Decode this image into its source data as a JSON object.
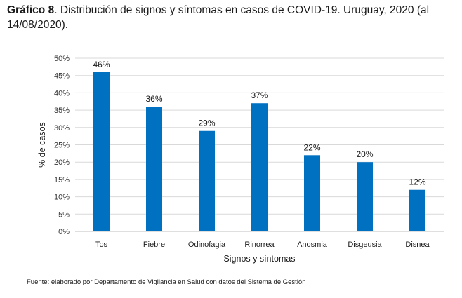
{
  "title": {
    "bold": "Gráfico 8",
    "text": ". Distribución de signos y síntomas en casos de COVID-19. Uruguay, 2020 (al 14/08/2020)."
  },
  "source": "Fuente: elaborado por Departamento de Vigilancia en Salud con datos del Sistema de Gestión",
  "chart_data": {
    "type": "bar",
    "title": "Distribución de signos y síntomas en casos de COVID-19. Uruguay, 2020 (al 14/08/2020).",
    "xlabel": "Signos y síntomas",
    "ylabel": "% de casos",
    "categories": [
      "Tos",
      "Fiebre",
      "Odinofagia",
      "Rinorrea",
      "Anosmia",
      "Disgeusia",
      "Disnea"
    ],
    "values": [
      46,
      36,
      29,
      37,
      22,
      20,
      12
    ],
    "data_labels": [
      "46%",
      "36%",
      "29%",
      "37%",
      "22%",
      "20%",
      "12%"
    ],
    "ylim": [
      0,
      50
    ],
    "yticks": [
      "0%",
      "5%",
      "10%",
      "15%",
      "20%",
      "25%",
      "30%",
      "35%",
      "40%",
      "45%",
      "50%"
    ],
    "grid": true,
    "bar_color": "#0070c0",
    "grid_color": "#d9d9d9"
  }
}
